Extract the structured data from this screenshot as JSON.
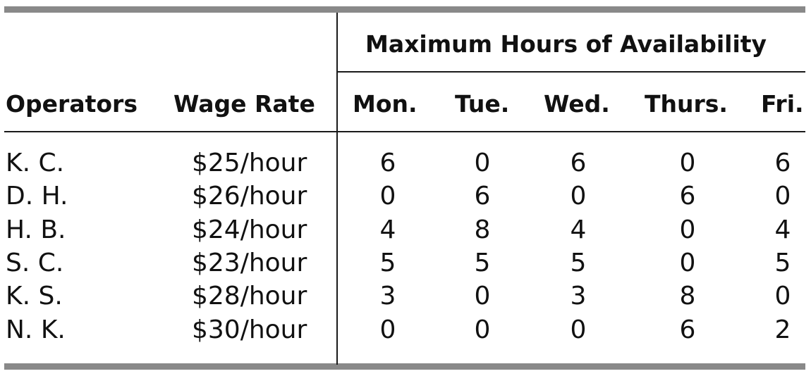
{
  "table": {
    "group_header": "Maximum Hours of Availability",
    "headers": {
      "operators": "Operators",
      "wage_rate": "Wage Rate",
      "days": [
        "Mon.",
        "Tue.",
        "Wed.",
        "Thurs.",
        "Fri."
      ]
    },
    "rows": [
      {
        "operator": "K. C.",
        "wage": "$25/hour",
        "hours": [
          "6",
          "0",
          "6",
          "0",
          "6"
        ]
      },
      {
        "operator": "D. H.",
        "wage": "$26/hour",
        "hours": [
          "0",
          "6",
          "0",
          "6",
          "0"
        ]
      },
      {
        "operator": "H. B.",
        "wage": "$24/hour",
        "hours": [
          "4",
          "8",
          "4",
          "0",
          "4"
        ]
      },
      {
        "operator": "S. C.",
        "wage": "$23/hour",
        "hours": [
          "5",
          "5",
          "5",
          "0",
          "5"
        ]
      },
      {
        "operator": "K. S.",
        "wage": "$28/hour",
        "hours": [
          "3",
          "0",
          "3",
          "8",
          "0"
        ]
      },
      {
        "operator": "N. K.",
        "wage": "$30/hour",
        "hours": [
          "0",
          "0",
          "0",
          "6",
          "2"
        ]
      }
    ],
    "colors": {
      "rule": "#898989",
      "text": "#111111"
    }
  }
}
